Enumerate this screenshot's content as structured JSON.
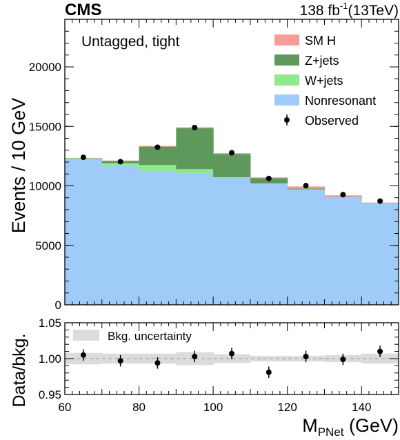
{
  "header": {
    "experiment": "CMS",
    "lumi_prefix": "138 fb",
    "lumi_exp": "-1",
    "energy": "(13TeV)"
  },
  "chart_data": [
    {
      "type": "stacked-histogram",
      "annotation": "Untagged, tight",
      "ylabel": "Events / 10 GeV",
      "xlim": [
        60,
        150
      ],
      "ylim": [
        0,
        24000
      ],
      "bin_edges": [
        60,
        70,
        80,
        90,
        100,
        110,
        120,
        130,
        140,
        150
      ],
      "x_ticks": [
        60,
        80,
        100,
        120,
        140
      ],
      "y_ticks": [
        0,
        5000,
        10000,
        15000,
        20000
      ],
      "y_tick_labels": [
        "0",
        "5000",
        "10000",
        "15000",
        "20000"
      ],
      "series": [
        {
          "name": "Nonresonant",
          "color": "#9fcbf8",
          "values": [
            12250,
            11650,
            11250,
            11050,
            10700,
            10200,
            9700,
            9050,
            8550
          ]
        },
        {
          "name": "W+jets",
          "color": "#8ee98c",
          "values": [
            20,
            250,
            500,
            350,
            30,
            5,
            5,
            5,
            5
          ]
        },
        {
          "name": "Z+jets",
          "color": "#5e985b",
          "values": [
            50,
            200,
            1550,
            3450,
            1950,
            450,
            80,
            30,
            15
          ]
        },
        {
          "name": "SM H",
          "color": "#f79d9b",
          "values": [
            10,
            30,
            60,
            80,
            70,
            60,
            170,
            120,
            30
          ]
        }
      ],
      "observed": {
        "name": "Observed",
        "x": [
          65,
          75,
          85,
          95,
          105,
          115,
          125,
          135,
          145
        ],
        "y": [
          12400,
          12030,
          13250,
          14900,
          12780,
          10620,
          10020,
          9260,
          8720
        ],
        "err": [
          150,
          150,
          150,
          160,
          150,
          140,
          140,
          130,
          130
        ]
      },
      "legend": [
        "SM H",
        "Z+jets",
        "W+jets",
        "Nonresonant",
        "Observed"
      ],
      "legend_position": "top-right"
    },
    {
      "type": "scatter",
      "ylabel": "Data/bkg.",
      "xlabel_main": "M",
      "xlabel_sub": "PNet",
      "xlabel_unit": " (GeV)",
      "xlim": [
        60,
        150
      ],
      "ylim": [
        0.95,
        1.05
      ],
      "y_ticks": [
        0.95,
        1.0,
        1.05
      ],
      "y_tick_labels": [
        "0.95",
        "1.00",
        "1.05"
      ],
      "x_ticks": [
        60,
        80,
        100,
        120,
        140
      ],
      "x_tick_labels": [
        "60",
        "80",
        "100",
        "120",
        "140"
      ],
      "reference_line": 1.0,
      "uncertainty_band": {
        "name": "Bkg. uncertainty",
        "color": "#dcdcdc",
        "half_widths": [
          0.008,
          0.007,
          0.007,
          0.009,
          0.006,
          0.004,
          0.004,
          0.005,
          0.007
        ]
      },
      "points": {
        "x": [
          65,
          75,
          85,
          95,
          105,
          115,
          125,
          135,
          145
        ],
        "y": [
          1.005,
          0.997,
          0.994,
          1.003,
          1.007,
          0.981,
          1.003,
          0.999,
          1.01
        ],
        "err": [
          0.008,
          0.008,
          0.008,
          0.008,
          0.008,
          0.008,
          0.008,
          0.008,
          0.008
        ]
      }
    }
  ]
}
